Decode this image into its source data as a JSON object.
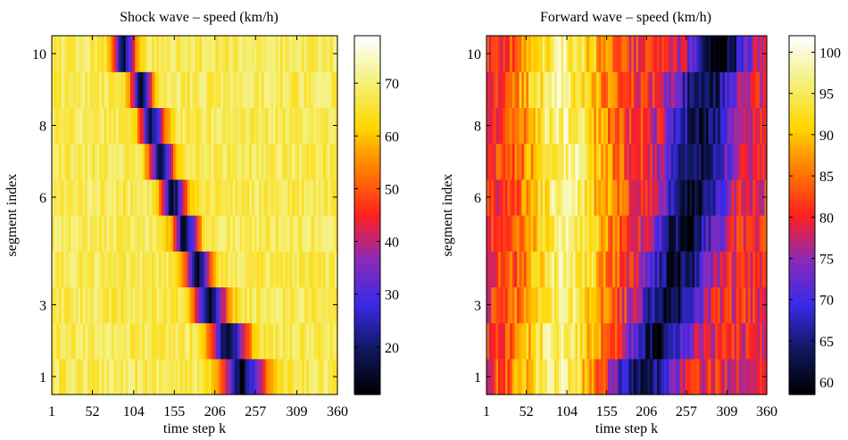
{
  "chart_data": [
    {
      "type": "heatmap",
      "title": "Shock wave – speed (km/h)",
      "xlabel": "time step k",
      "ylabel": "segment index",
      "x_range": [
        1,
        360
      ],
      "x_ticks": [
        1,
        52,
        104,
        155,
        206,
        257,
        309,
        360
      ],
      "y_ticks": [
        1,
        3,
        6,
        8,
        10
      ],
      "y_segments": 10,
      "colorbar": {
        "min": 11,
        "max": 79,
        "ticks": [
          20,
          30,
          40,
          50,
          60,
          70
        ]
      },
      "colormap": [
        "#000000",
        "#101860",
        "#3a2ae8",
        "#8a2bb8",
        "#ff2020",
        "#ff7a00",
        "#ffd800",
        "#f4f07a",
        "#ffffff"
      ],
      "description_values": {
        "background_speed": 68,
        "jam_speed": 12,
        "jam_center_by_segment": [
          244,
          225,
          202,
          186,
          170,
          155,
          140,
          128,
          115,
          93
        ],
        "jam_width_by_segment": [
          48,
          42,
          36,
          30,
          28,
          27,
          27,
          27,
          24,
          24
        ]
      }
    },
    {
      "type": "heatmap",
      "title": "Forward wave – speed (km/h)",
      "xlabel": "time step k",
      "ylabel": "segment index",
      "x_range": [
        1,
        360
      ],
      "x_ticks": [
        1,
        52,
        104,
        155,
        206,
        257,
        309,
        360
      ],
      "y_ticks": [
        1,
        3,
        6,
        8,
        10
      ],
      "y_segments": 10,
      "colorbar": {
        "min": 58.5,
        "max": 102,
        "ticks": [
          60,
          65,
          70,
          75,
          80,
          85,
          90,
          95,
          100
        ]
      },
      "colormap": [
        "#000000",
        "#101860",
        "#3a2ae8",
        "#8a2bb8",
        "#ff2020",
        "#ff7a00",
        "#ffd800",
        "#f4f07a",
        "#ffffff"
      ],
      "description_values": {
        "background_speed": 80,
        "high_speed": 97,
        "high_center_by_segment": [
          90,
          95,
          100,
          105,
          105,
          105,
          105,
          100,
          95,
          100
        ],
        "low_speed": 61,
        "low_center_by_segment": [
          200,
          220,
          235,
          245,
          255,
          265,
          270,
          275,
          280,
          300
        ]
      }
    }
  ]
}
